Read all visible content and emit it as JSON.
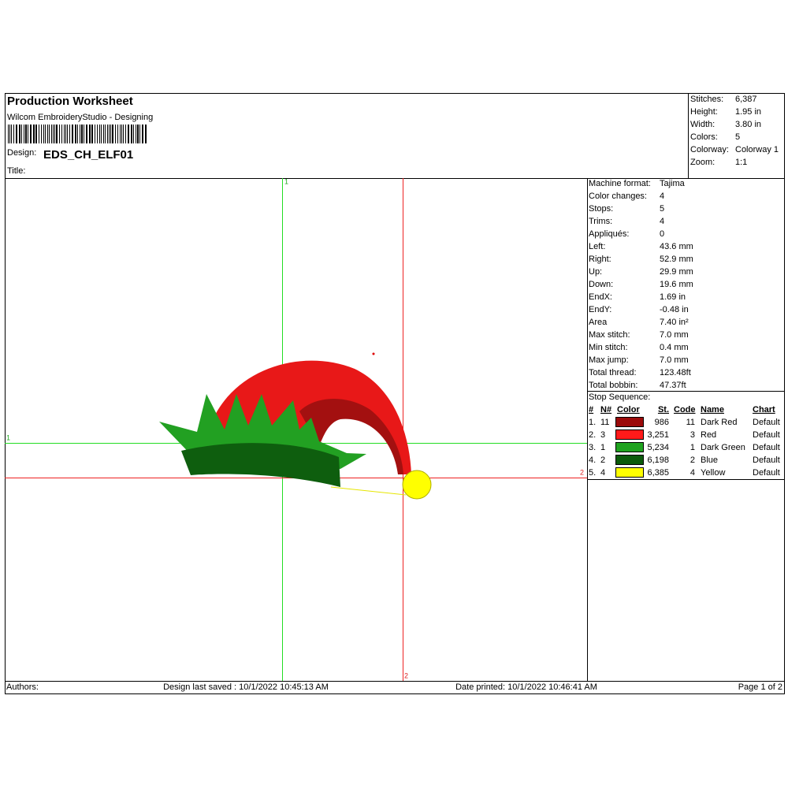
{
  "header": {
    "title": "Production Worksheet",
    "subtitle": "Wilcom EmbroideryStudio - Designing",
    "design_label": "Design:",
    "design": "EDS_CH_ELF01",
    "title_label": "Title:"
  },
  "summary": [
    {
      "label": "Stitches:",
      "value": "6,387"
    },
    {
      "label": "Height:",
      "value": "1.95 in"
    },
    {
      "label": "Width:",
      "value": "3.80 in"
    },
    {
      "label": "Colors:",
      "value": "5"
    },
    {
      "label": "Colorway:",
      "value": "Colorway 1"
    },
    {
      "label": "Zoom:",
      "value": "1:1"
    }
  ],
  "machine": [
    {
      "label": "Machine format:",
      "value": "Tajima"
    },
    {
      "label": "Color changes:",
      "value": "4"
    },
    {
      "label": "Stops:",
      "value": "5"
    },
    {
      "label": "Trims:",
      "value": "4"
    },
    {
      "label": "Appliqués:",
      "value": "0"
    },
    {
      "label": "Left:",
      "value": "43.6 mm"
    },
    {
      "label": "Right:",
      "value": "52.9 mm"
    },
    {
      "label": "Up:",
      "value": "29.9 mm"
    },
    {
      "label": "Down:",
      "value": "19.6 mm"
    },
    {
      "label": "EndX:",
      "value": "1.69 in"
    },
    {
      "label": "EndY:",
      "value": "-0.48 in"
    },
    {
      "label": "Area",
      "value": " 7.40 in²"
    },
    {
      "label": "Max stitch:",
      "value": "7.0 mm"
    },
    {
      "label": "Min stitch:",
      "value": "0.4 mm"
    },
    {
      "label": "Max jump:",
      "value": "7.0 mm"
    },
    {
      "label": "Total thread:",
      "value": "123.48ft"
    },
    {
      "label": "Total bobbin:",
      "value": "47.37ft"
    }
  ],
  "stop_sequence": {
    "title": "Stop Sequence:",
    "columns": [
      "#",
      "N#",
      "Color",
      "St.",
      "Code",
      "Name",
      "Chart"
    ],
    "rows": [
      {
        "num": "1.",
        "n": "11",
        "color": "#9b0a0a",
        "stitches": "986",
        "code": "11",
        "name": "Dark Red",
        "chart": "Default"
      },
      {
        "num": "2.",
        "n": "3",
        "color": "#ff1a1a",
        "stitches": "3,251",
        "code": "3",
        "name": "Red",
        "chart": "Default"
      },
      {
        "num": "3.",
        "n": "1",
        "color": "#1fa31f",
        "stitches": "5,234",
        "code": "1",
        "name": "Dark Green",
        "chart": "Default"
      },
      {
        "num": "4.",
        "n": "2",
        "color": "#0b5a0b",
        "stitches": "6,198",
        "code": "2",
        "name": "Blue",
        "chart": "Default"
      },
      {
        "num": "5.",
        "n": "4",
        "color": "#ffff00",
        "stitches": "6,385",
        "code": "4",
        "name": "Yellow",
        "chart": "Default"
      }
    ]
  },
  "crosshair_labels": {
    "green_top": "1",
    "green_left": "1",
    "red_right": "2",
    "red_bottom": "2"
  },
  "footer": {
    "authors": "Authors:",
    "saved": "Design last saved : 10/1/2022 10:45:13 AM",
    "printed": "Date printed: 10/1/2022 10:46:41 AM",
    "page": "Page 1 of 2"
  }
}
